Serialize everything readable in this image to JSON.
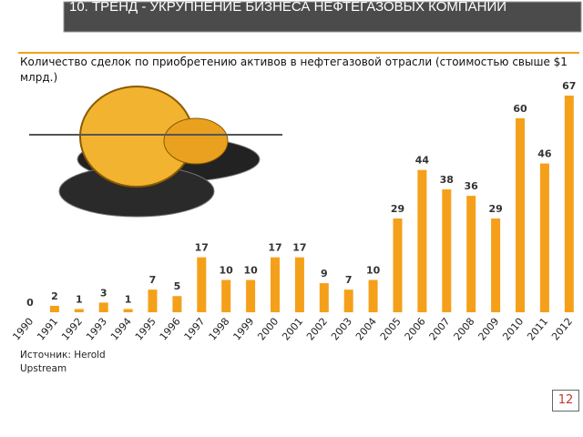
{
  "header": {
    "title": "10. ТРЕНД - УКРУПНЕНИЕ БИЗНЕСА НЕФТЕГАЗОВЫХ КОМПАНИЙ"
  },
  "chart_data": {
    "type": "bar",
    "title": "Количество сделок по приобретению активов в нефтегазовой отрасли (стоимостью свыше $1 млрд.)",
    "categories": [
      "1990",
      "1991",
      "1992",
      "1993",
      "1994",
      "1995",
      "1996",
      "1997",
      "1998",
      "1999",
      "2000",
      "2001",
      "2002",
      "2003",
      "2004",
      "2005",
      "2006",
      "2007",
      "2008",
      "2009",
      "2010",
      "2011",
      "2012"
    ],
    "values": [
      0,
      2,
      1,
      3,
      1,
      7,
      5,
      17,
      10,
      10,
      17,
      17,
      9,
      7,
      10,
      29,
      44,
      38,
      36,
      29,
      60,
      46,
      67
    ],
    "color": "#f5a01a"
  },
  "source": "Источник: Herold Upstream",
  "page_number": "12"
}
